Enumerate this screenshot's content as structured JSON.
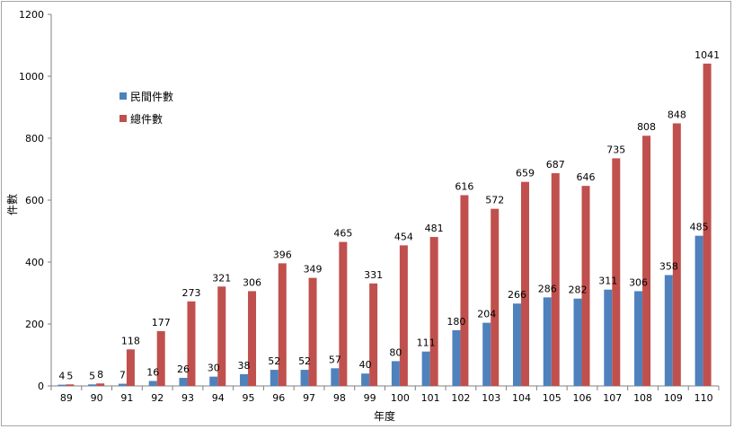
{
  "chart_data": {
    "type": "bar",
    "categories": [
      "89",
      "90",
      "91",
      "92",
      "93",
      "94",
      "95",
      "96",
      "97",
      "98",
      "99",
      "100",
      "101",
      "102",
      "103",
      "104",
      "105",
      "106",
      "107",
      "108",
      "109",
      "110"
    ],
    "series": [
      {
        "name": "民間件數",
        "color": "#4f81bd",
        "values": [
          4,
          5,
          7,
          16,
          26,
          30,
          38,
          52,
          52,
          57,
          40,
          80,
          111,
          180,
          204,
          266,
          286,
          282,
          311,
          306,
          358,
          485
        ]
      },
      {
        "name": "總件數",
        "color": "#c0504d",
        "values": [
          5,
          8,
          118,
          177,
          273,
          321,
          306,
          396,
          349,
          465,
          331,
          454,
          481,
          616,
          572,
          659,
          687,
          646,
          735,
          808,
          848,
          1041
        ]
      }
    ],
    "xlabel": "年度",
    "ylabel": "件數",
    "ylim": [
      0,
      1200
    ],
    "yticks": [
      "0",
      "200",
      "400",
      "600",
      "800",
      "1000",
      "1200"
    ],
    "grid": false,
    "legend_position": "top-left"
  }
}
